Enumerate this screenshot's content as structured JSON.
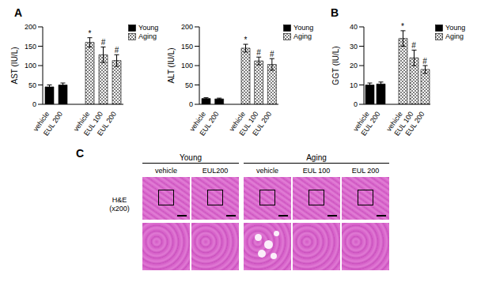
{
  "panel_labels": [
    "A",
    "B",
    "C"
  ],
  "chart_data": [
    {
      "type": "bar",
      "y_label": "AST (IU/L)",
      "categories": [
        "vehicle",
        "EUL 200",
        null,
        "vehicle",
        "EUL 100",
        "EUL 200"
      ],
      "series": [
        {
          "name": "Young",
          "color": "#000000",
          "values": [
            45,
            50,
            null,
            null,
            null,
            null
          ],
          "errors": [
            5,
            5,
            null,
            null,
            null,
            null
          ]
        },
        {
          "name": "Aging",
          "color": "#7f7f7f",
          "values": [
            null,
            null,
            null,
            160,
            128,
            113
          ],
          "errors": [
            null,
            null,
            null,
            12,
            20,
            15
          ],
          "annotations": [
            null,
            null,
            null,
            "*",
            "#",
            "#"
          ]
        }
      ],
      "ylim": [
        0,
        200
      ],
      "yticks": [
        0,
        50,
        100,
        150,
        200
      ],
      "legend": "top-right"
    },
    {
      "type": "bar",
      "y_label": "ALT (IU/L)",
      "categories": [
        "vehicle",
        "EUL 200",
        null,
        "vehicle",
        "EUL 100",
        "EUL 200"
      ],
      "series": [
        {
          "name": "Young",
          "color": "#000000",
          "values": [
            15,
            14,
            null,
            null,
            null,
            null
          ],
          "errors": [
            2,
            2,
            null,
            null,
            null,
            null
          ]
        },
        {
          "name": "Aging",
          "color": "#7f7f7f",
          "values": [
            null,
            null,
            null,
            145,
            112,
            103
          ],
          "errors": [
            null,
            null,
            null,
            10,
            10,
            15
          ],
          "annotations": [
            null,
            null,
            null,
            "*",
            "#",
            "#"
          ]
        }
      ],
      "ylim": [
        0,
        200
      ],
      "yticks": [
        0,
        50,
        100,
        150,
        200
      ],
      "legend": "top-right"
    },
    {
      "type": "bar",
      "y_label": "GGT (IU/L)",
      "categories": [
        "vehicle",
        "EUL 200",
        null,
        "vehicle",
        "EUL 100",
        "EUL 200"
      ],
      "series": [
        {
          "name": "Young",
          "color": "#000000",
          "values": [
            10,
            10.5,
            null,
            null,
            null,
            null
          ],
          "errors": [
            1,
            1,
            null,
            null,
            null,
            null
          ]
        },
        {
          "name": "Aging",
          "color": "#7f7f7f",
          "values": [
            null,
            null,
            null,
            34,
            24,
            18
          ],
          "errors": [
            null,
            null,
            null,
            4,
            4,
            2
          ],
          "annotations": [
            null,
            null,
            null,
            "*",
            "#",
            "#"
          ]
        }
      ],
      "ylim": [
        0,
        40
      ],
      "yticks": [
        0,
        10,
        20,
        30,
        40
      ],
      "legend": "top-right"
    }
  ],
  "histology": {
    "groups": [
      {
        "name": "Young",
        "columns": [
          "vehicle",
          "EUL200"
        ]
      },
      {
        "name": "Aging",
        "columns": [
          "vehicle",
          "EUL 100",
          "EUL 200"
        ]
      }
    ],
    "stain": "H&E",
    "magnification": "(x200)"
  }
}
